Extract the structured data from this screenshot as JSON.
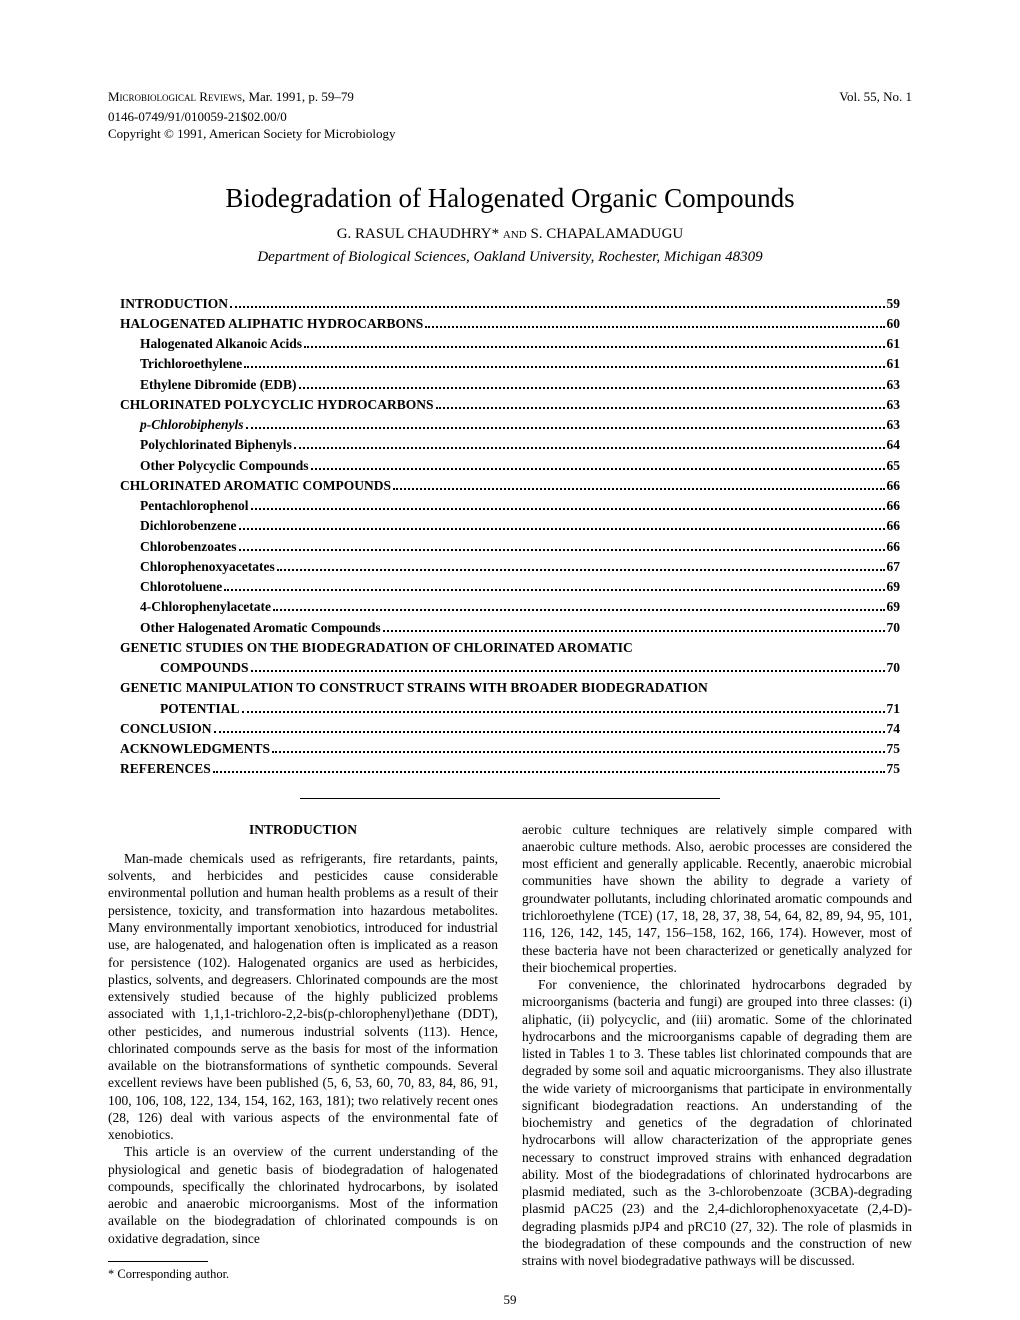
{
  "header": {
    "journal": "Microbiological Reviews,",
    "date": "Mar. 1991, p. 59–79",
    "volume": "Vol. 55, No. 1",
    "code": "0146-0749/91/010059-21$02.00/0",
    "copyright": "Copyright © 1991, American Society for Microbiology"
  },
  "title": "Biodegradation of Halogenated Organic Compounds",
  "authors_pre": "G. RASUL CHAUDHRY* ",
  "authors_and": "and",
  "authors_post": " S. CHAPALAMADUGU",
  "affiliation": "Department of Biological Sciences, Oakland University, Rochester, Michigan 48309",
  "toc": [
    {
      "label": "INTRODUCTION",
      "page": "59",
      "indent": 0
    },
    {
      "label": "HALOGENATED ALIPHATIC HYDROCARBONS",
      "page": "60",
      "indent": 0
    },
    {
      "label": "Halogenated Alkanoic Acids",
      "page": "61",
      "indent": 1
    },
    {
      "label": "Trichloroethylene",
      "page": "61",
      "indent": 1
    },
    {
      "label": "Ethylene Dibromide (EDB)",
      "page": "63",
      "indent": 1
    },
    {
      "label": "CHLORINATED POLYCYCLIC HYDROCARBONS",
      "page": "63",
      "indent": 0
    },
    {
      "label": "p-Chlorobiphenyls",
      "page": "63",
      "indent": 1,
      "italic": true
    },
    {
      "label": "Polychlorinated Biphenyls",
      "page": "64",
      "indent": 1
    },
    {
      "label": "Other Polycyclic Compounds",
      "page": "65",
      "indent": 1
    },
    {
      "label": "CHLORINATED AROMATIC COMPOUNDS",
      "page": "66",
      "indent": 0
    },
    {
      "label": "Pentachlorophenol",
      "page": "66",
      "indent": 1
    },
    {
      "label": "Dichlorobenzene",
      "page": "66",
      "indent": 1
    },
    {
      "label": "Chlorobenzoates",
      "page": "66",
      "indent": 1
    },
    {
      "label": "Chlorophenoxyacetates",
      "page": "67",
      "indent": 1
    },
    {
      "label": "Chlorotoluene",
      "page": "69",
      "indent": 1
    },
    {
      "label": "4-Chlorophenylacetate",
      "page": "69",
      "indent": 1
    },
    {
      "label": "Other Halogenated Aromatic Compounds",
      "page": "70",
      "indent": 1
    },
    {
      "label": "GENETIC STUDIES ON THE BIODEGRADATION OF CHLORINATED AROMATIC COMPOUNDS",
      "page": "70",
      "indent": 0,
      "wrap": true
    },
    {
      "label": "GENETIC MANIPULATION TO CONSTRUCT STRAINS WITH BROADER BIODEGRADATION POTENTIAL",
      "page": "71",
      "indent": 0,
      "wrap": true
    },
    {
      "label": "CONCLUSION",
      "page": "74",
      "indent": 0
    },
    {
      "label": "ACKNOWLEDGMENTS",
      "page": "75",
      "indent": 0
    },
    {
      "label": "REFERENCES",
      "page": "75",
      "indent": 0
    }
  ],
  "section_heading": "INTRODUCTION",
  "col1_p1": "Man-made chemicals used as refrigerants, fire retardants, paints, solvents, and herbicides and pesticides cause considerable environmental pollution and human health problems as a result of their persistence, toxicity, and transformation into hazardous metabolites. Many environmentally important xenobiotics, introduced for industrial use, are halogenated, and halogenation often is implicated as a reason for persistence (102). Halogenated organics are used as herbicides, plastics, solvents, and degreasers. Chlorinated compounds are the most extensively studied because of the highly publicized problems associated with 1,1,1-trichloro-2,2-bis(p-chlorophenyl)ethane (DDT), other pesticides, and numerous industrial solvents (113). Hence, chlorinated compounds serve as the basis for most of the information available on the biotransformations of synthetic compounds. Several excellent reviews have been published (5, 6, 53, 60, 70, 83, 84, 86, 91, 100, 106, 108, 122, 134, 154, 162, 163, 181); two relatively recent ones (28, 126) deal with various aspects of the environmental fate of xenobiotics.",
  "col1_p2": "This article is an overview of the current understanding of the physiological and genetic basis of biodegradation of halogenated compounds, specifically the chlorinated hydrocarbons, by isolated aerobic and anaerobic microorganisms. Most of the information available on the biodegradation of chlorinated compounds is on oxidative degradation, since",
  "col2_p1": "aerobic culture techniques are relatively simple compared with anaerobic culture methods. Also, aerobic processes are considered the most efficient and generally applicable. Recently, anaerobic microbial communities have shown the ability to degrade a variety of groundwater pollutants, including chlorinated aromatic compounds and trichloroethylene (TCE) (17, 18, 28, 37, 38, 54, 64, 82, 89, 94, 95, 101, 116, 126, 142, 145, 147, 156–158, 162, 166, 174). However, most of these bacteria have not been characterized or genetically analyzed for their biochemical properties.",
  "col2_p2": "For convenience, the chlorinated hydrocarbons degraded by microorganisms (bacteria and fungi) are grouped into three classes: (i) aliphatic, (ii) polycyclic, and (iii) aromatic. Some of the chlorinated hydrocarbons and the microorganisms capable of degrading them are listed in Tables 1 to 3. These tables list chlorinated compounds that are degraded by some soil and aquatic microorganisms. They also illustrate the wide variety of microorganisms that participate in environmentally significant biodegradation reactions. An understanding of the biochemistry and genetics of the degradation of chlorinated hydrocarbons will allow characterization of the appropriate genes necessary to construct improved strains with enhanced degradation ability. Most of the biodegradations of chlorinated hydrocarbons are plasmid mediated, such as the 3-chlorobenzoate (3CBA)-degrading plasmid pAC25 (23) and the 2,4-dichlorophenoxyacetate (2,4-D)-degrading plasmids pJP4 and pRC10 (27, 32). The role of plasmids in the biodegradation of these compounds and the construction of new strains with novel biodegradative pathways will be discussed.",
  "footnote": "* Corresponding author.",
  "page_number": "59"
}
